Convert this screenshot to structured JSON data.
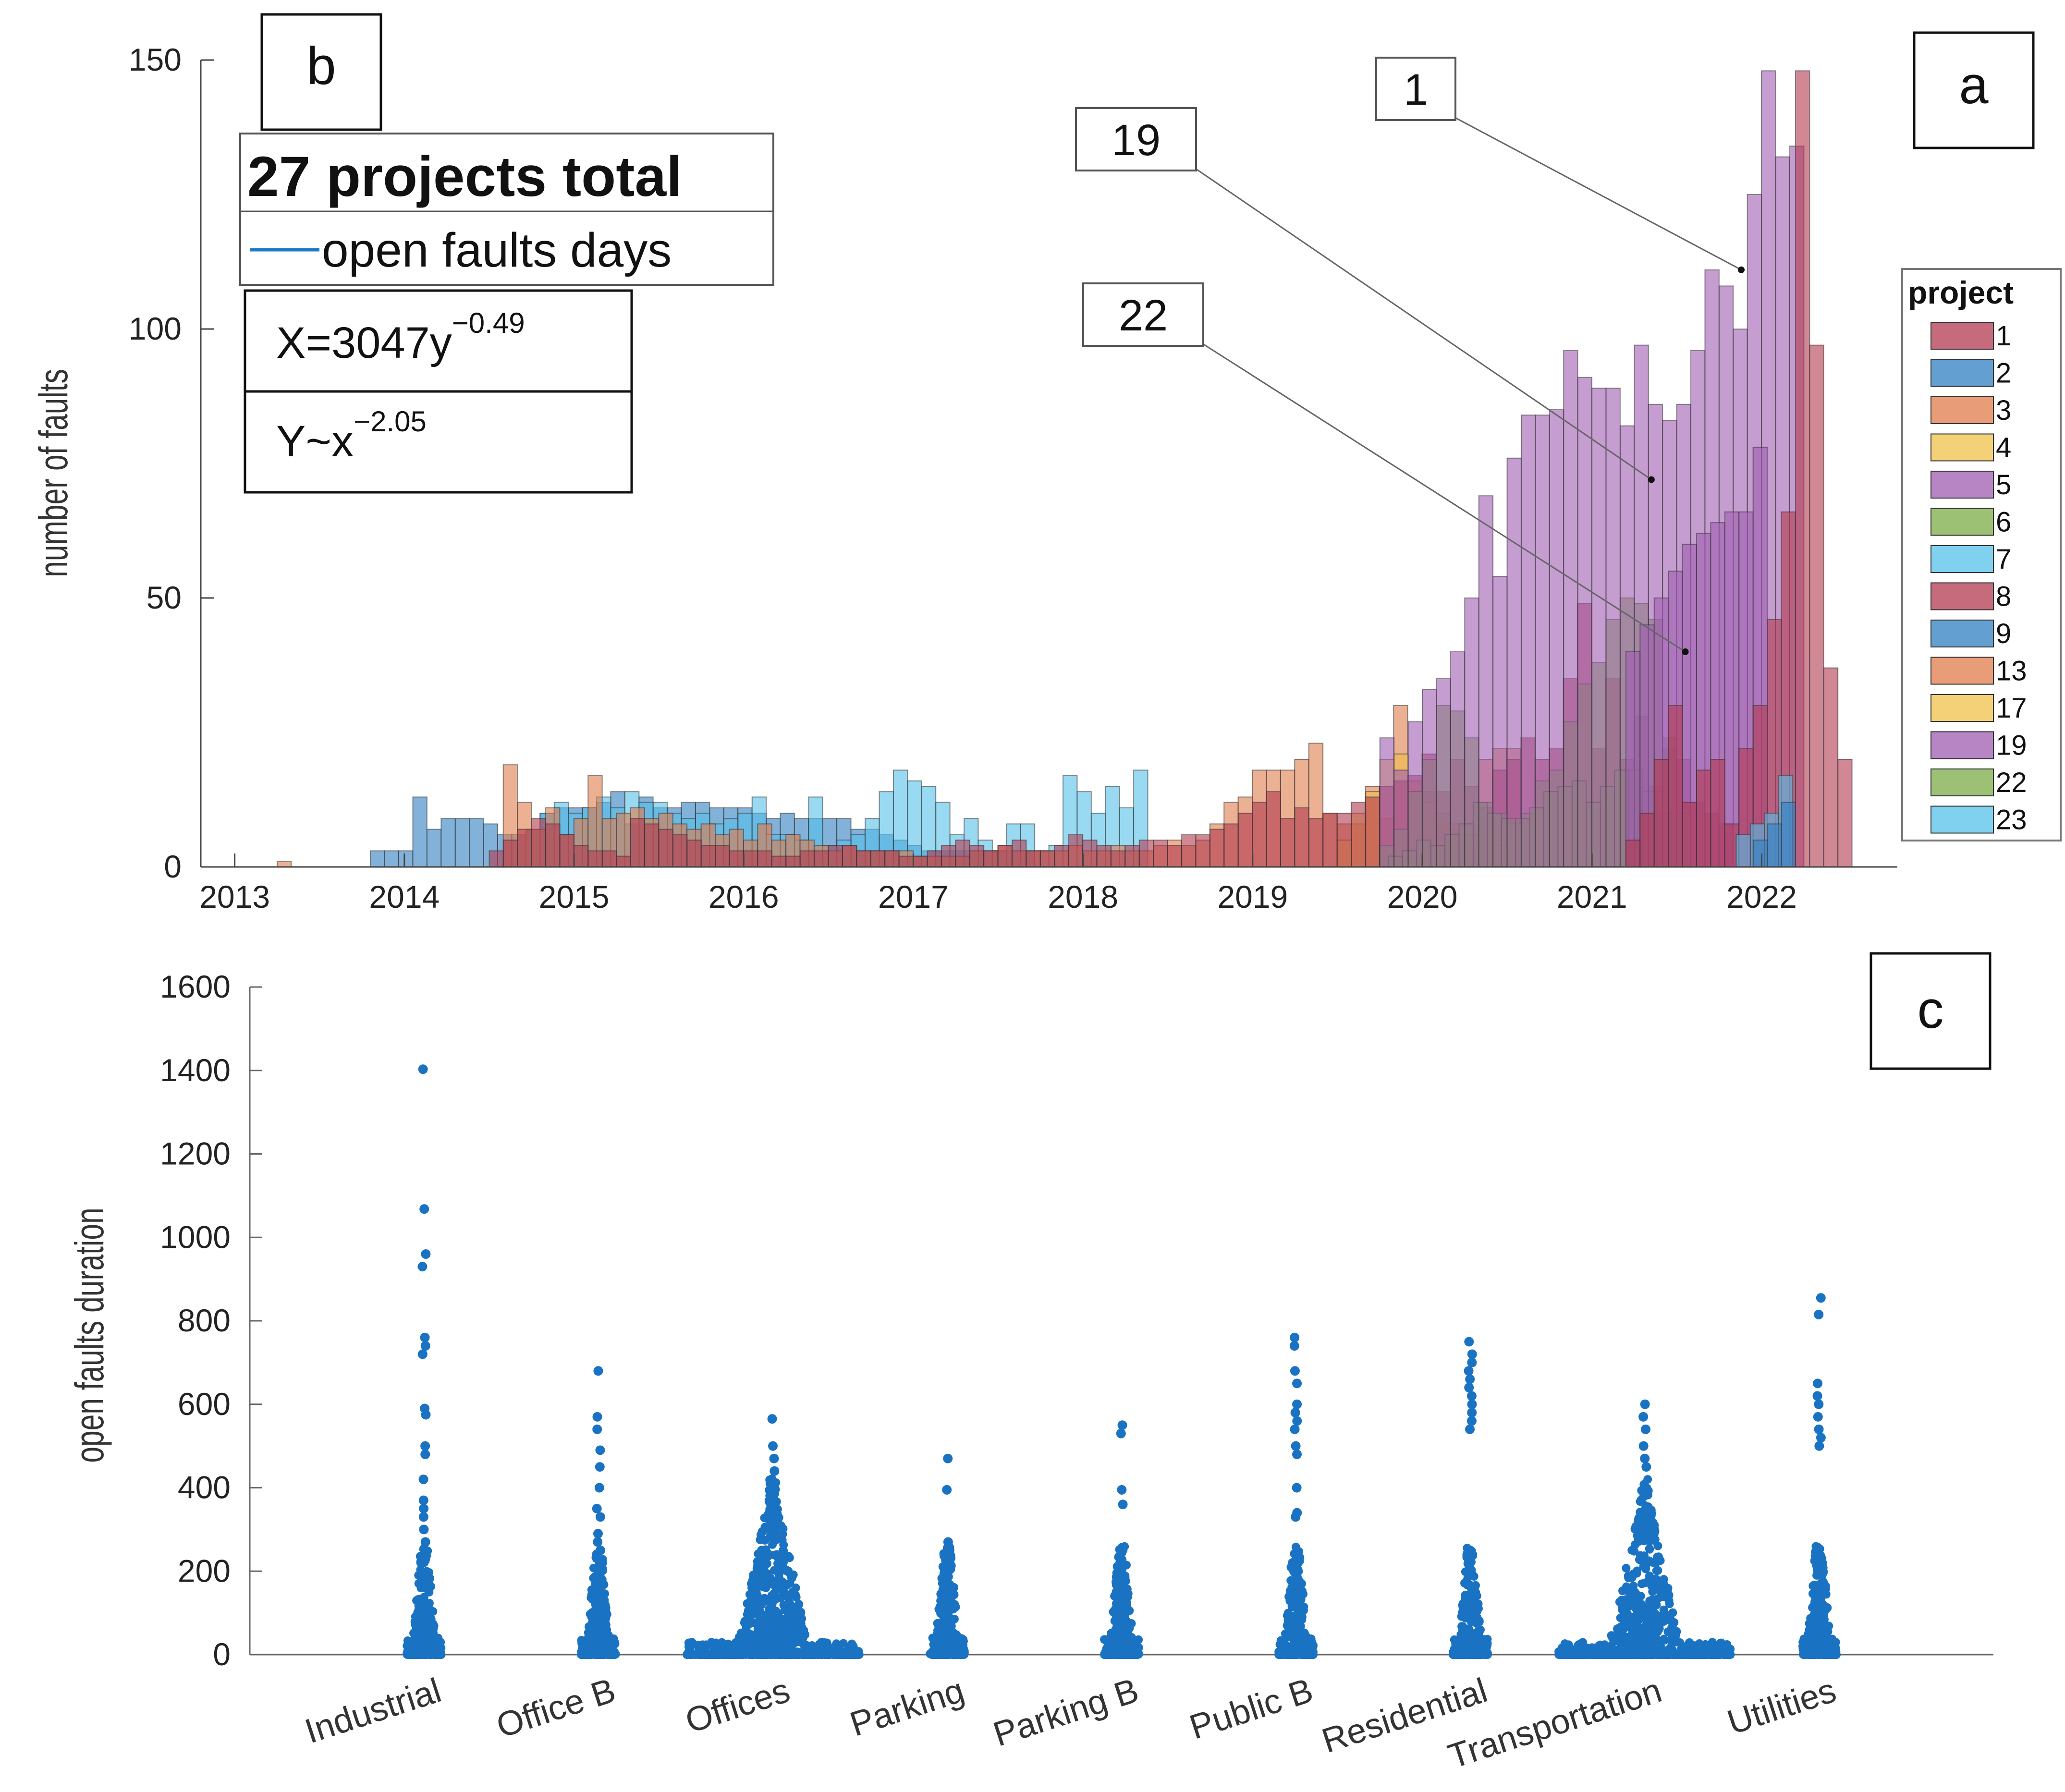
{
  "chart_data": [
    {
      "id": "a",
      "type": "bar",
      "panel_label": "a",
      "ylabel": "number of faults",
      "xlabel": "",
      "ylim": [
        0,
        150
      ],
      "yticks": [
        0,
        50,
        100,
        150
      ],
      "xlim": [
        2012.8,
        2022.8
      ],
      "xticks": [
        "2013",
        "2014",
        "2015",
        "2016",
        "2017",
        "2018",
        "2019",
        "2020",
        "2021",
        "2022"
      ],
      "bin_width_years": 0.0833,
      "legend_title": "project",
      "legend_position": "right",
      "legend": [
        {
          "name": "1",
          "color": "#b2394f"
        },
        {
          "name": "2",
          "color": "#2f7fc1"
        },
        {
          "name": "3",
          "color": "#e07b4a"
        },
        {
          "name": "4",
          "color": "#f0c04a"
        },
        {
          "name": "5",
          "color": "#9f5bb0"
        },
        {
          "name": "6",
          "color": "#7bab45"
        },
        {
          "name": "7",
          "color": "#55c0ea"
        },
        {
          "name": "8",
          "color": "#b2394f"
        },
        {
          "name": "9",
          "color": "#2f7fc1"
        },
        {
          "name": "13",
          "color": "#e07b4a"
        },
        {
          "name": "17",
          "color": "#f0c04a"
        },
        {
          "name": "19",
          "color": "#9f5bb0"
        },
        {
          "name": "22",
          "color": "#7bab45"
        },
        {
          "name": "23",
          "color": "#55c0ea"
        }
      ],
      "series": [
        {
          "name": "2",
          "color": "#2f7fc1",
          "start": 2013.8,
          "values": [
            3,
            3,
            3,
            13,
            7,
            9,
            9,
            9,
            8,
            6,
            6,
            7,
            10,
            11,
            11,
            11,
            12,
            14,
            8,
            13,
            11,
            11,
            12,
            12,
            11,
            11,
            11,
            10,
            9,
            10,
            9,
            9,
            9,
            9,
            7,
            7,
            6,
            5,
            4,
            3,
            3,
            3,
            3,
            3,
            3,
            3,
            3
          ]
        },
        {
          "name": "7",
          "color": "#55c0ea",
          "start": 2014.8,
          "values": [
            10,
            12,
            10,
            11,
            13,
            11,
            14,
            12,
            12,
            10,
            9,
            10,
            8,
            9,
            10,
            13,
            6,
            6,
            5,
            13,
            4,
            5,
            6,
            9,
            14,
            18,
            16,
            15,
            12,
            6,
            9,
            5,
            3,
            8,
            8,
            3,
            4,
            17,
            14,
            10,
            15,
            11,
            18
          ]
        },
        {
          "name": "3",
          "color": "#e07b4a",
          "start": 2013.25,
          "values": [
            1,
            0,
            0,
            0,
            0,
            0,
            0,
            0,
            0,
            0,
            0,
            0,
            0,
            0,
            0,
            0,
            19,
            12,
            7,
            11,
            6,
            9,
            17,
            9,
            10,
            11,
            9,
            10,
            8,
            7,
            8,
            6,
            7,
            5,
            8,
            5,
            6,
            5,
            4,
            3,
            4,
            3,
            3,
            3,
            3,
            2,
            2,
            2,
            2,
            3,
            3,
            4,
            3,
            3,
            3,
            3,
            4,
            3,
            3,
            4,
            3,
            3,
            4,
            5,
            4,
            5,
            8,
            12,
            13,
            18,
            18,
            18,
            20,
            23,
            10,
            8,
            8,
            15,
            9,
            30,
            14,
            14,
            8,
            7,
            6,
            20,
            22,
            22
          ]
        },
        {
          "name": "17",
          "color": "#f0c04a",
          "start": 2019.5,
          "values": [
            5,
            10,
            14,
            20,
            21,
            16,
            12,
            10,
            8,
            6,
            5,
            4
          ]
        },
        {
          "name": "8",
          "color": "#b2394f",
          "start": 2014.5,
          "values": [
            3,
            5,
            7,
            9,
            8,
            6,
            4,
            3,
            3,
            2,
            9,
            8,
            7,
            6,
            5,
            4,
            4,
            3,
            3,
            3,
            2,
            2,
            3,
            3,
            4,
            4,
            3,
            3,
            3,
            2,
            2,
            3,
            4,
            5,
            4,
            3,
            4,
            5,
            3,
            3,
            4,
            6,
            5,
            4,
            3,
            4,
            5,
            5,
            4,
            6,
            6,
            7,
            8,
            10,
            12,
            14,
            9,
            11,
            9,
            10,
            10,
            12,
            13,
            15,
            16,
            17,
            21,
            14,
            20,
            15,
            11,
            18,
            20,
            24,
            20,
            22,
            35,
            49,
            22,
            35,
            20,
            28,
            15,
            22,
            20,
            12,
            10,
            8
          ]
        },
        {
          "name": "22",
          "color": "#7bab45",
          "start": 2019.75,
          "values": [
            4,
            7,
            14,
            20,
            30,
            29,
            24,
            12,
            10,
            8,
            10,
            16,
            18,
            27,
            34,
            38,
            46,
            50,
            49,
            46,
            24,
            10
          ]
        },
        {
          "name": "6",
          "color": "#7bab45",
          "start": 2019.8,
          "values": [
            2,
            3,
            5,
            4,
            6,
            8,
            12,
            10,
            9,
            9,
            11,
            14,
            15,
            16,
            12,
            15,
            18,
            18,
            14,
            10
          ]
        },
        {
          "name": "5",
          "color": "#9f5bb0",
          "start": 2019.75,
          "values": [
            24,
            18,
            27,
            33,
            35,
            40,
            50,
            69,
            54,
            76,
            84,
            84,
            85,
            96,
            91,
            89,
            89,
            82,
            97,
            86,
            83,
            86,
            96,
            111,
            108,
            100,
            125,
            148,
            132,
            134
          ]
        },
        {
          "name": "19",
          "color": "#9f5bb0",
          "start": 2021.2,
          "values": [
            40,
            45,
            50,
            55,
            60,
            62,
            64,
            66,
            66,
            78
          ]
        },
        {
          "name": "1",
          "color": "#b2394f",
          "start": 2021.2,
          "values": [
            5,
            10,
            20,
            30,
            12,
            18,
            20,
            8,
            22,
            30,
            46,
            66,
            148,
            97,
            37,
            20
          ]
        },
        {
          "name": "23",
          "color": "#55c0ea",
          "start": 2021.85,
          "values": [
            6,
            8,
            10,
            17
          ]
        },
        {
          "name": "9",
          "color": "#2f7fc1",
          "start": 2021.95,
          "values": [
            5,
            8,
            12
          ]
        }
      ],
      "annotations": [
        {
          "label": "1",
          "target_x": 2021.88,
          "target_y": 111
        },
        {
          "label": "19",
          "target_x": 2021.35,
          "target_y": 72
        },
        {
          "label": "22",
          "target_x": 2021.55,
          "target_y": 40
        }
      ]
    },
    {
      "id": "b",
      "type": "inset-legend",
      "panel_label": "b",
      "title": "27 projects total",
      "legend_entry": "open faults days",
      "line_color": "#1a7ac7",
      "formula_x_base": "X=3047y",
      "formula_x_exp": "−0.49",
      "formula_y_base": "Y~x",
      "formula_y_exp": "−2.05"
    },
    {
      "id": "c",
      "type": "scatter",
      "panel_label": "c",
      "ylabel": "open faults duration",
      "xlabel": "",
      "ylim": [
        0,
        1600
      ],
      "yticks": [
        0,
        200,
        400,
        600,
        800,
        1000,
        1200,
        1400,
        1600
      ],
      "point_color": "#1a72c2",
      "categories": [
        "Industrial",
        "Office B",
        "Offices",
        "Parking",
        "Parking B",
        "Public B",
        "Residential",
        "Transportation",
        "Utilities"
      ],
      "groups": [
        {
          "category": "Industrial",
          "max": 1403,
          "outliers": [
            1403,
            1068,
            960,
            930,
            760,
            740,
            720,
            590,
            575,
            500,
            480,
            420,
            370,
            350,
            330,
            300,
            270
          ]
        },
        {
          "category": "Office B",
          "max": 680,
          "outliers": [
            680,
            570,
            540,
            490,
            450,
            400,
            350,
            330,
            290,
            270,
            250,
            220,
            200,
            150
          ]
        },
        {
          "category": "Offices",
          "max": 565,
          "outliers": [
            565,
            500,
            470,
            440,
            420,
            400,
            380,
            360
          ]
        },
        {
          "category": "Parking",
          "max": 470,
          "outliers": [
            470,
            395,
            270,
            240,
            220
          ]
        },
        {
          "category": "Parking B",
          "max": 550,
          "outliers": [
            550,
            530,
            395,
            360,
            210,
            160,
            120,
            100,
            70,
            40
          ]
        },
        {
          "category": "Public B",
          "max": 760,
          "outliers": [
            760,
            740,
            680,
            650,
            600,
            580,
            560,
            540,
            500,
            480,
            400,
            340,
            330,
            220,
            120,
            110,
            60,
            40
          ]
        },
        {
          "category": "Residential",
          "max": 750,
          "outliers": [
            750,
            720,
            700,
            680,
            660,
            640,
            620,
            600,
            580,
            560,
            540
          ]
        },
        {
          "category": "Transportation",
          "max": 600,
          "outliers": [
            600,
            570,
            540,
            500,
            470,
            450
          ]
        },
        {
          "category": "Utilities",
          "max": 855,
          "outliers": [
            855,
            815,
            650,
            620,
            600,
            570,
            540,
            520,
            500
          ]
        }
      ]
    }
  ]
}
